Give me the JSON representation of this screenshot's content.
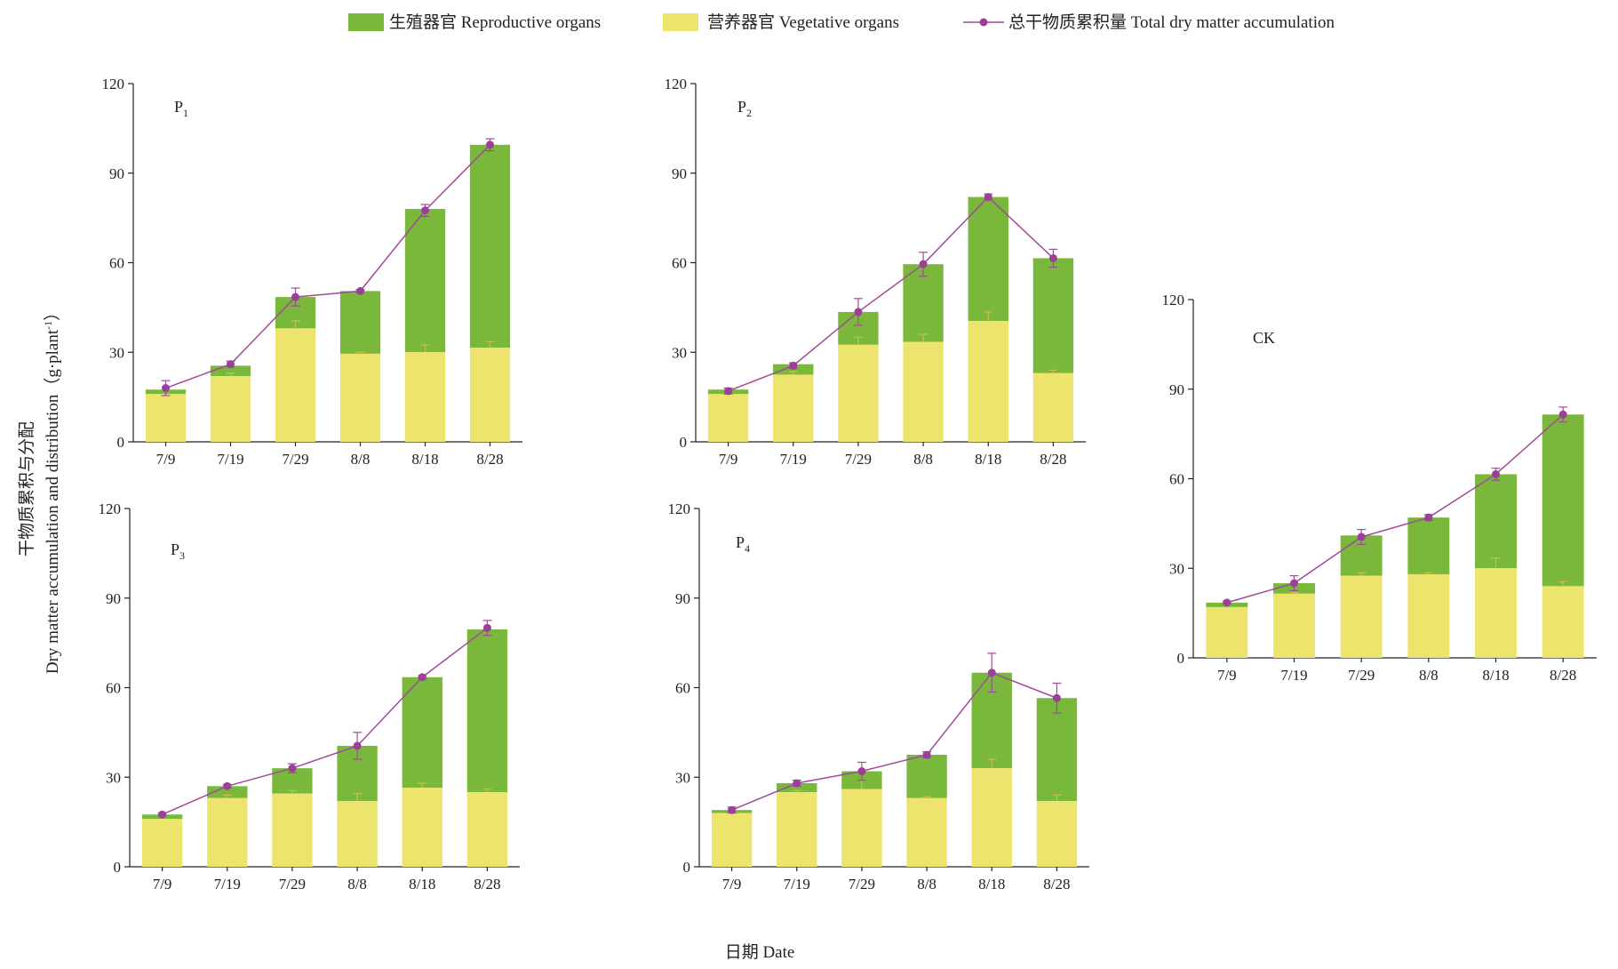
{
  "legend": {
    "reproductive": "生殖器官 Reproductive organs",
    "vegetative": "营养器官  Vegetative organs",
    "total": "总干物质累积量 Total dry matter accumulation"
  },
  "colors": {
    "reproductive": "#79b83b",
    "vegetative": "#ece46c",
    "total_line": "#a04a9c",
    "total_marker": "#9c3f98"
  },
  "axis_titles": {
    "y_cn": "干物质累积与分配",
    "y_en": "Dry matter accumulation and distribution（g·plant",
    "y_sup": "-1",
    "y_close": "）",
    "x": "日期 Date"
  },
  "chart_data": [
    {
      "type": "bar",
      "stacked": true,
      "panel": "P1",
      "label_main": "P",
      "label_sub": "1",
      "categories": [
        "7/9",
        "7/19",
        "7/29",
        "8/8",
        "8/18",
        "8/28"
      ],
      "series": [
        {
          "name": "营养器官  Vegetative organs",
          "values": [
            16,
            22,
            38,
            29.5,
            30,
            31.5
          ],
          "errors": [
            0,
            1,
            2.5,
            0.5,
            2.5,
            2
          ]
        },
        {
          "name": "生殖器官 Reproductive organs",
          "values": [
            1.5,
            3.5,
            10.5,
            21,
            48,
            68
          ],
          "errors": [
            0,
            0,
            0,
            0,
            0,
            0
          ]
        }
      ],
      "total": {
        "name": "总干物质累积量 Total dry matter accumulation",
        "values": [
          18,
          26,
          48.5,
          50.5,
          77.5,
          99.5
        ],
        "errors": [
          2.5,
          1,
          3,
          0.5,
          2,
          2
        ]
      },
      "ylim": [
        0,
        120
      ],
      "yticks": [
        0,
        30,
        60,
        90,
        120
      ]
    },
    {
      "type": "bar",
      "stacked": true,
      "panel": "P2",
      "label_main": "P",
      "label_sub": "2",
      "categories": [
        "7/9",
        "7/19",
        "7/29",
        "8/8",
        "8/18",
        "8/28"
      ],
      "series": [
        {
          "name": "营养器官  Vegetative organs",
          "values": [
            16,
            22.5,
            32.5,
            33.5,
            40.5,
            23
          ],
          "errors": [
            0,
            1,
            2.5,
            2.5,
            3,
            1
          ]
        },
        {
          "name": "生殖器官 Reproductive organs",
          "values": [
            1.5,
            3.5,
            11,
            26,
            41.5,
            38.5
          ],
          "errors": [
            0,
            0,
            0,
            0,
            0,
            0
          ]
        }
      ],
      "total": {
        "name": "总干物质累积量 Total dry matter accumulation",
        "values": [
          17,
          25.5,
          43.5,
          59.5,
          82,
          61.5
        ],
        "errors": [
          1,
          1,
          4.5,
          4,
          1,
          3
        ]
      },
      "ylim": [
        0,
        120
      ],
      "yticks": [
        0,
        30,
        60,
        90,
        120
      ]
    },
    {
      "type": "bar",
      "stacked": true,
      "panel": "P3",
      "label_main": "P",
      "label_sub": "3",
      "categories": [
        "7/9",
        "7/19",
        "7/29",
        "8/8",
        "8/18",
        "8/28"
      ],
      "series": [
        {
          "name": "营养器官  Vegetative organs",
          "values": [
            16,
            23,
            24.5,
            22,
            26.5,
            25
          ],
          "errors": [
            0,
            1,
            1,
            2.5,
            1.5,
            1
          ]
        },
        {
          "name": "生殖器官 Reproductive organs",
          "values": [
            1.5,
            4,
            8.5,
            18.5,
            37,
            54.5
          ],
          "errors": [
            0,
            0,
            0,
            0,
            0,
            0
          ]
        }
      ],
      "total": {
        "name": "总干物质累积量 Total dry matter accumulation",
        "values": [
          17.5,
          27,
          33,
          40.5,
          63.5,
          80
        ],
        "errors": [
          0.5,
          0.5,
          1.5,
          4.5,
          0.5,
          2.5
        ]
      },
      "ylim": [
        0,
        120
      ],
      "yticks": [
        0,
        30,
        60,
        90,
        120
      ]
    },
    {
      "type": "bar",
      "stacked": true,
      "panel": "P4",
      "label_main": "P",
      "label_sub": "4",
      "categories": [
        "7/9",
        "7/19",
        "7/29",
        "8/8",
        "8/18",
        "8/28"
      ],
      "series": [
        {
          "name": "营养器官  Vegetative organs",
          "values": [
            18,
            25,
            26,
            23,
            33,
            22
          ],
          "errors": [
            0,
            0.5,
            3,
            0.5,
            3,
            2
          ]
        },
        {
          "name": "生殖器官 Reproductive organs",
          "values": [
            1,
            3,
            6,
            14.5,
            32,
            34.5
          ],
          "errors": [
            0,
            0,
            0,
            0,
            0,
            0
          ]
        }
      ],
      "total": {
        "name": "总干物质累积量 Total dry matter accumulation",
        "values": [
          19,
          28,
          32,
          37.5,
          65,
          56.5
        ],
        "errors": [
          1,
          1,
          3,
          1,
          6.5,
          5
        ]
      },
      "ylim": [
        0,
        120
      ],
      "yticks": [
        0,
        30,
        60,
        90,
        120
      ]
    },
    {
      "type": "bar",
      "stacked": true,
      "panel": "CK",
      "label_main": "CK",
      "label_sub": "",
      "categories": [
        "7/9",
        "7/19",
        "7/29",
        "8/8",
        "8/18",
        "8/28"
      ],
      "series": [
        {
          "name": "营养器官  Vegetative organs",
          "values": [
            17,
            21.5,
            27.5,
            28,
            30,
            24
          ],
          "errors": [
            0,
            0.5,
            1,
            0.5,
            3.5,
            1.5
          ]
        },
        {
          "name": "生殖器官 Reproductive organs",
          "values": [
            1.5,
            3.5,
            13.5,
            19,
            31.5,
            57.5
          ],
          "errors": [
            0,
            0,
            0,
            0,
            0,
            0
          ]
        }
      ],
      "total": {
        "name": "总干物质累积量 Total dry matter accumulation",
        "values": [
          18.5,
          25,
          40.5,
          47,
          61.5,
          81.5
        ],
        "errors": [
          0.5,
          2.5,
          2.5,
          1,
          2,
          2.5
        ]
      },
      "ylim": [
        0,
        120
      ],
      "yticks": [
        0,
        30,
        60,
        90,
        120
      ]
    }
  ]
}
